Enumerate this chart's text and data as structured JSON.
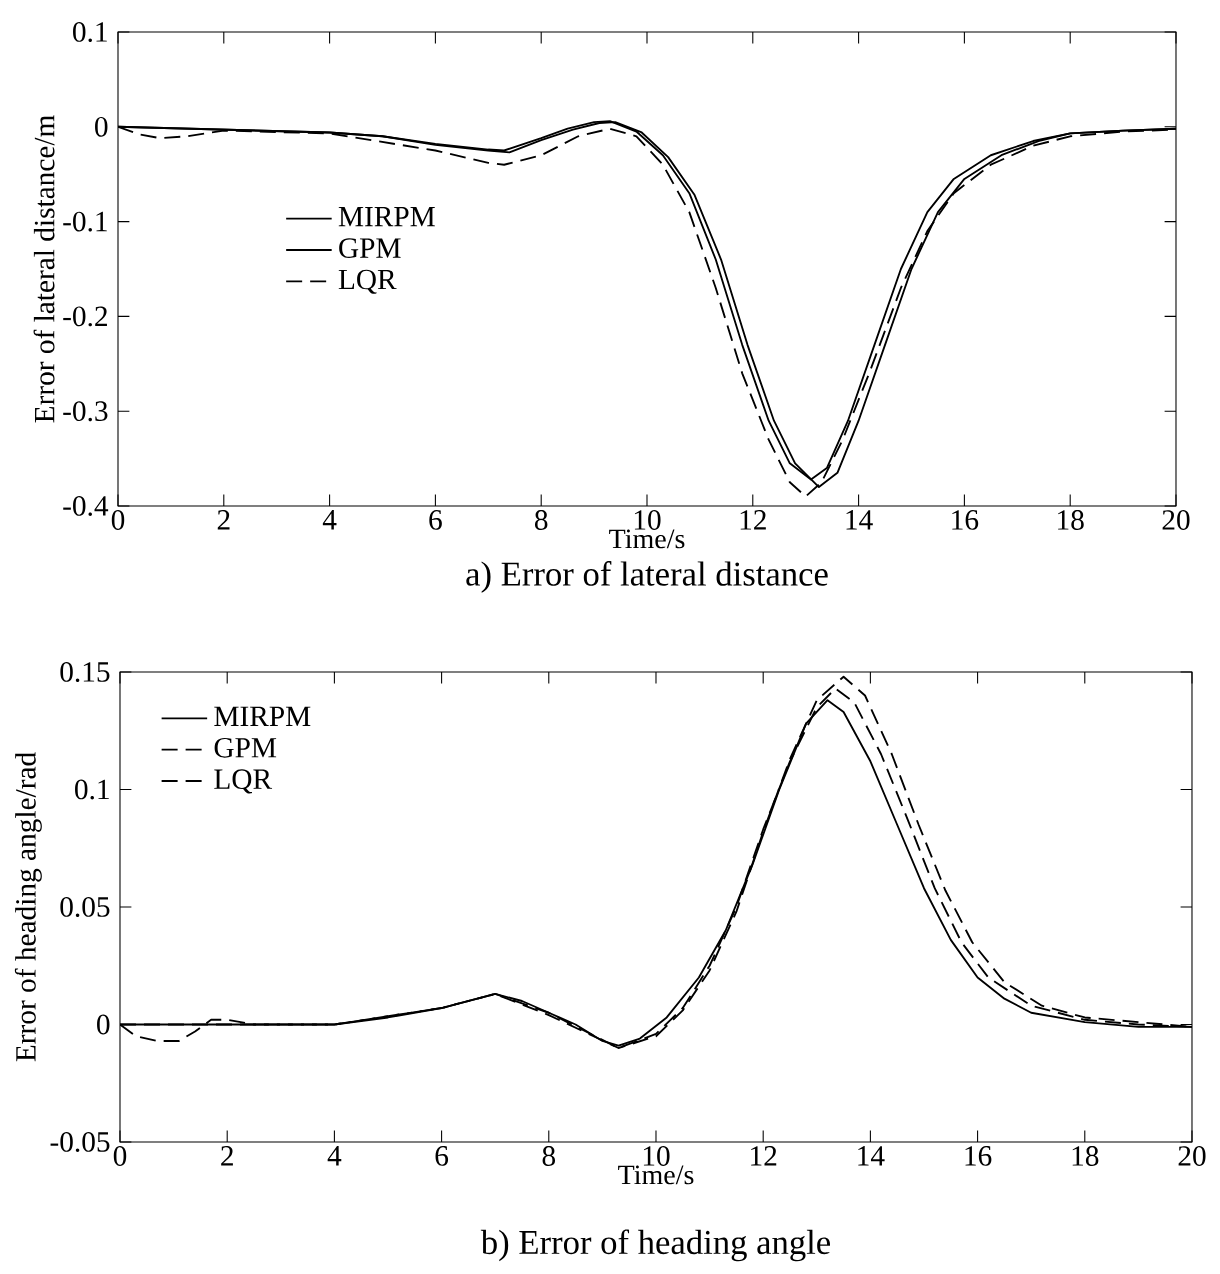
{
  "chart_data": [
    {
      "type": "line",
      "title": "a) Error of lateral distance",
      "xlabel": "Time/s",
      "ylabel": "Error of lateral distance/m",
      "xlim": [
        0,
        20
      ],
      "ylim": [
        -0.4,
        0.1
      ],
      "xticks": [
        0,
        2,
        4,
        6,
        8,
        10,
        12,
        14,
        16,
        18,
        20
      ],
      "yticks": [
        -0.4,
        -0.3,
        -0.2,
        -0.1,
        0,
        0.1
      ],
      "grid": false,
      "legend": "left",
      "series": [
        {
          "name": "MIRPM",
          "color": "#000000",
          "line_style": "solid",
          "x": [
            0,
            2,
            4,
            5,
            6,
            7,
            7.3,
            8,
            8.5,
            9,
            9.3,
            9.8,
            10.3,
            10.8,
            11.3,
            11.8,
            12.3,
            12.7,
            13.1,
            13.4,
            13.8,
            14.3,
            14.8,
            15.3,
            15.8,
            16.5,
            17.3,
            18,
            19,
            20
          ],
          "values": [
            0,
            -0.003,
            -0.006,
            -0.01,
            -0.018,
            -0.024,
            -0.025,
            -0.012,
            -0.002,
            0.005,
            0.006,
            -0.005,
            -0.03,
            -0.07,
            -0.14,
            -0.23,
            -0.31,
            -0.355,
            -0.372,
            -0.36,
            -0.31,
            -0.23,
            -0.15,
            -0.09,
            -0.055,
            -0.03,
            -0.015,
            -0.007,
            -0.004,
            -0.002
          ]
        },
        {
          "name": "GPM",
          "color": "#000000",
          "line_style": "solid",
          "x": [
            0,
            2,
            4,
            5,
            6,
            7,
            7.4,
            8,
            8.6,
            9.1,
            9.4,
            9.9,
            10.4,
            10.9,
            11.4,
            11.9,
            12.4,
            12.8,
            13.25,
            13.6,
            14,
            14.5,
            15,
            15.5,
            16,
            16.7,
            17.4,
            18,
            19,
            20
          ],
          "values": [
            0,
            -0.003,
            -0.006,
            -0.01,
            -0.019,
            -0.025,
            -0.027,
            -0.014,
            -0.003,
            0.004,
            0.005,
            -0.006,
            -0.032,
            -0.072,
            -0.14,
            -0.23,
            -0.31,
            -0.355,
            -0.38,
            -0.365,
            -0.31,
            -0.23,
            -0.15,
            -0.09,
            -0.055,
            -0.03,
            -0.015,
            -0.007,
            -0.004,
            -0.002
          ]
        },
        {
          "name": "LQR",
          "color": "#000000",
          "line_style": "dashed",
          "x": [
            0,
            0.4,
            0.8,
            1.3,
            2,
            4,
            6,
            7,
            7.3,
            8,
            8.7,
            9.3,
            9.8,
            10.3,
            10.8,
            11.3,
            11.8,
            12.3,
            12.7,
            13,
            13.3,
            13.7,
            14.2,
            14.8,
            15.3,
            15.8,
            16.5,
            17.3,
            18,
            19,
            20
          ],
          "values": [
            0,
            -0.008,
            -0.012,
            -0.01,
            -0.004,
            -0.007,
            -0.025,
            -0.038,
            -0.04,
            -0.03,
            -0.01,
            -0.002,
            -0.01,
            -0.04,
            -0.09,
            -0.17,
            -0.26,
            -0.33,
            -0.375,
            -0.39,
            -0.375,
            -0.33,
            -0.26,
            -0.17,
            -0.11,
            -0.07,
            -0.04,
            -0.02,
            -0.01,
            -0.005,
            -0.003
          ]
        }
      ]
    },
    {
      "type": "line",
      "title": "b) Error of heading angle",
      "xlabel": "Time/s",
      "ylabel": "Error of heading angle/rad",
      "xlim": [
        0,
        20
      ],
      "ylim": [
        -0.05,
        0.15
      ],
      "xticks": [
        0,
        2,
        4,
        6,
        8,
        10,
        12,
        14,
        16,
        18,
        20
      ],
      "yticks": [
        -0.05,
        0,
        0.05,
        0.1,
        0.15
      ],
      "grid": false,
      "legend": "top left",
      "series": [
        {
          "name": "MIRPM",
          "color": "#000000",
          "line_style": "solid",
          "x": [
            0,
            4,
            5,
            6,
            7,
            7.5,
            8,
            8.5,
            9,
            9.3,
            9.7,
            10.2,
            10.8,
            11.3,
            11.8,
            12.3,
            12.8,
            13.2,
            13.5,
            14,
            14.5,
            15,
            15.5,
            16,
            16.5,
            17,
            18,
            19,
            20
          ],
          "values": [
            0,
            0,
            0.003,
            0.007,
            0.013,
            0.01,
            0.005,
            0,
            -0.007,
            -0.009,
            -0.006,
            0.003,
            0.02,
            0.04,
            0.068,
            0.1,
            0.128,
            0.138,
            0.133,
            0.112,
            0.085,
            0.058,
            0.036,
            0.02,
            0.011,
            0.005,
            0.001,
            -0.001,
            -0.001
          ]
        },
        {
          "name": "GPM",
          "color": "#000000",
          "line_style": "dashed",
          "x": [
            0,
            0.3,
            0.7,
            1.1,
            1.4,
            1.7,
            2,
            2.5,
            4,
            6,
            7,
            8,
            9.3,
            10,
            10.5,
            11,
            11.5,
            12,
            12.5,
            13,
            13.35,
            13.7,
            14.2,
            14.7,
            15.2,
            15.7,
            16.2,
            17,
            18,
            19,
            20
          ],
          "values": [
            0,
            -0.005,
            -0.007,
            -0.007,
            -0.003,
            0.002,
            0.002,
            0,
            0,
            0.007,
            0.013,
            0.005,
            -0.01,
            -0.004,
            0.007,
            0.025,
            0.05,
            0.083,
            0.112,
            0.135,
            0.143,
            0.137,
            0.115,
            0.087,
            0.058,
            0.035,
            0.02,
            0.008,
            0.002,
            0,
            -0.001
          ]
        },
        {
          "name": "LQR",
          "color": "#000000",
          "line_style": "dashed",
          "x": [
            0,
            4,
            6,
            7,
            8,
            9.3,
            10,
            10.5,
            11,
            11.5,
            12,
            12.5,
            13,
            13.5,
            13.9,
            14.4,
            14.9,
            15.4,
            15.9,
            16.5,
            17.2,
            18,
            19,
            20
          ],
          "values": [
            0,
            0,
            0.007,
            0.013,
            0.004,
            -0.01,
            -0.005,
            0.006,
            0.023,
            0.048,
            0.082,
            0.113,
            0.138,
            0.148,
            0.14,
            0.115,
            0.085,
            0.057,
            0.035,
            0.018,
            0.008,
            0.003,
            0.001,
            -0.001
          ]
        }
      ]
    }
  ]
}
